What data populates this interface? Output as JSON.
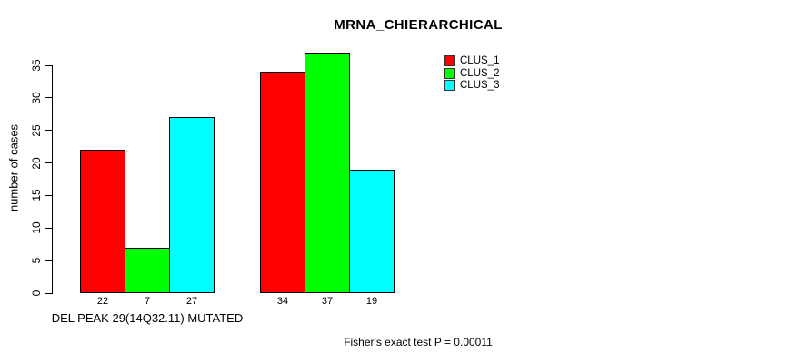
{
  "page": {
    "background": "#FFFFFF"
  },
  "chart_data": {
    "type": "bar",
    "title": "MRNA_CHIERARCHICAL",
    "ylabel": "number of cases",
    "xlabel": "",
    "ylim": [
      0,
      35
    ],
    "yticks": [
      0,
      5,
      10,
      15,
      20,
      25,
      30,
      35
    ],
    "grid": false,
    "legend_position": "top-right",
    "categories": [
      "DEL PEAK 29(14Q32.11) MUTATED",
      ""
    ],
    "series": [
      {
        "name": "CLUS_1",
        "color": "#FF0000",
        "values": [
          22,
          34
        ]
      },
      {
        "name": "CLUS_2",
        "color": "#00FF00",
        "values": [
          7,
          37
        ]
      },
      {
        "name": "CLUS_3",
        "color": "#00FFFF",
        "values": [
          27,
          19
        ]
      }
    ],
    "value_labels": [
      [
        22,
        7,
        27
      ],
      [
        34,
        37,
        19
      ]
    ],
    "annotation": "Fisher's exact test P = 0.00011"
  }
}
